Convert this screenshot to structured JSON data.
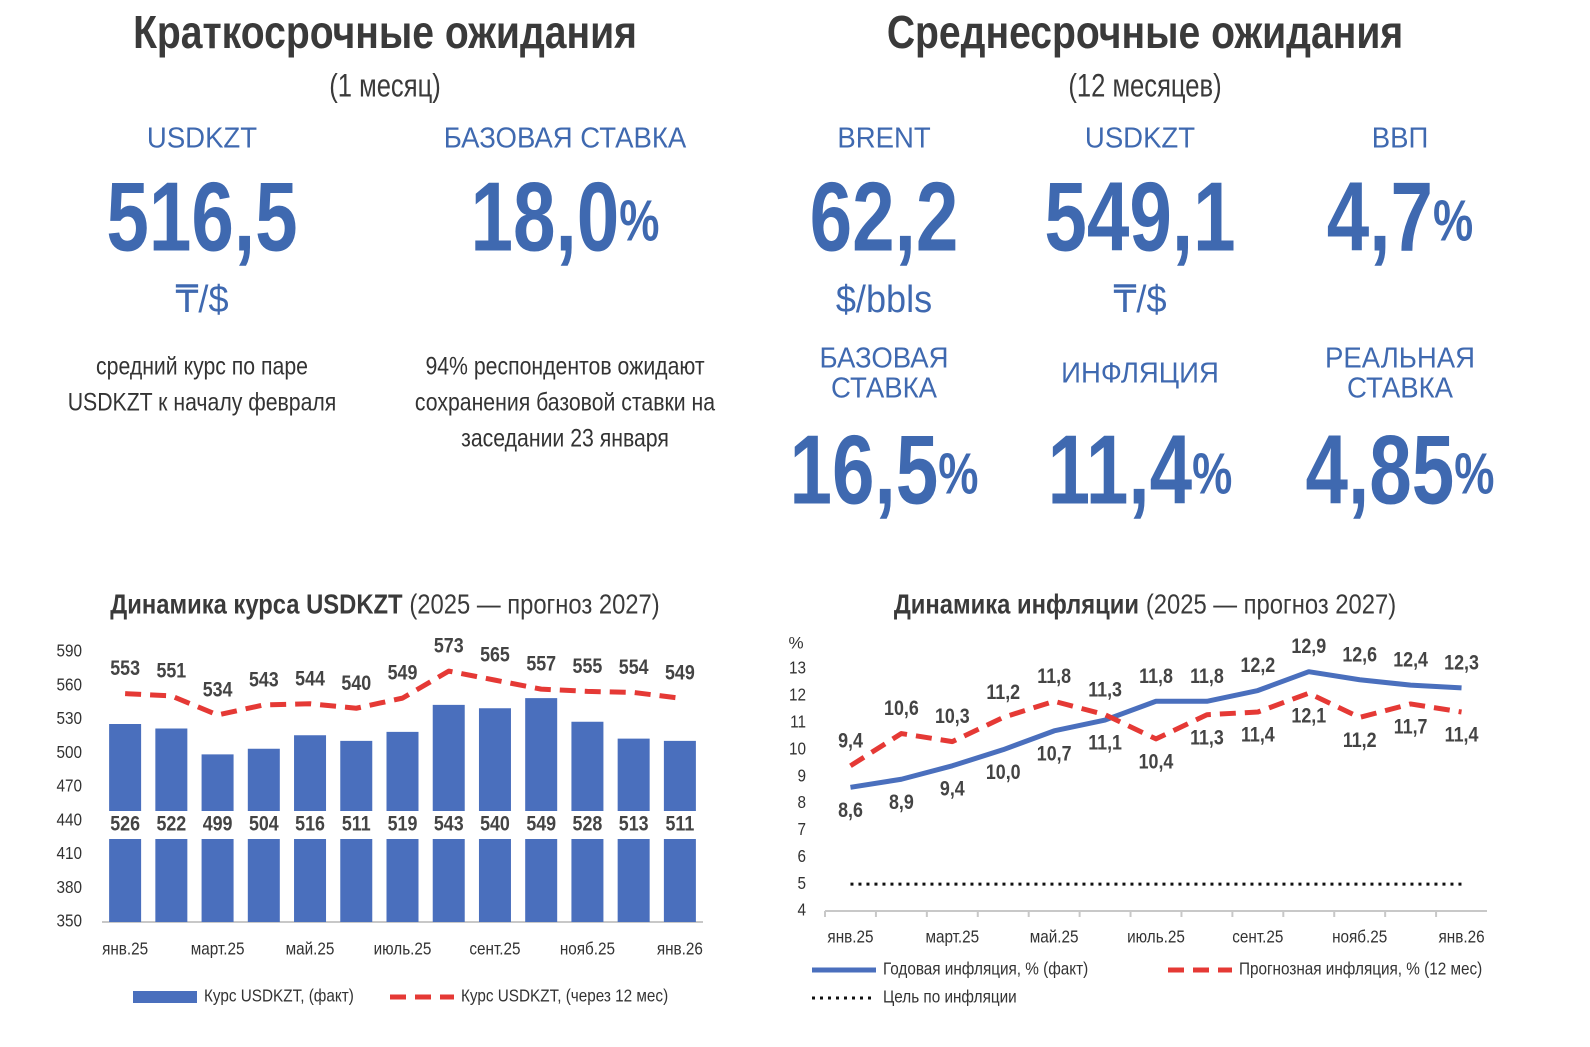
{
  "left": {
    "title": "Краткосрочные ожидания",
    "subtitle": "(1 месяц)",
    "kpis": [
      {
        "label": [
          "USDKZT"
        ],
        "value": "516,5",
        "unit": "₸/$",
        "note": [
          "средний курс по паре",
          "USDKZT к началу февраля"
        ]
      },
      {
        "label": [
          "БАЗОВАЯ СТАВКА"
        ],
        "value": "18,0",
        "suffix": "%",
        "note": [
          "94% респондентов ожидают",
          "сохранения базовой ставки на",
          "заседании 23 января"
        ]
      }
    ]
  },
  "right": {
    "title": "Среднесрочные ожидания",
    "subtitle": "(12 месяцев)",
    "kpis": [
      {
        "label": [
          "BRENT"
        ],
        "value": "62,2",
        "unit": "$/bbls"
      },
      {
        "label": [
          "USDKZT"
        ],
        "value": "549,1",
        "unit": "₸/$"
      },
      {
        "label": [
          "ВВП"
        ],
        "value": "4,7",
        "suffix": "%"
      },
      {
        "label": [
          "БАЗОВАЯ",
          "СТАВКА"
        ],
        "value": "16,5",
        "suffix": "%"
      },
      {
        "label": [
          "ИНФЛЯЦИЯ"
        ],
        "value": "11,4",
        "suffix": "%"
      },
      {
        "label": [
          "РЕАЛЬНАЯ",
          "СТАВКА"
        ],
        "value": "4,85",
        "suffix": "%"
      }
    ]
  },
  "chart_data": [
    {
      "type": "bar",
      "title": "Динамика курса USDKZT",
      "subtitle": "(2025 — прогноз 2027)",
      "categories": [
        "янв.25",
        null,
        "март.25",
        null,
        "май.25",
        null,
        "июль.25",
        null,
        "сент.25",
        null,
        "нояб.25",
        null,
        "янв.26"
      ],
      "series": [
        {
          "name": "Курс USDKZT, (факт)",
          "type": "bar",
          "color": "#4a6fbd",
          "values": [
            526,
            522,
            499,
            504,
            516,
            511,
            519,
            543,
            540,
            549,
            528,
            513,
            511
          ]
        },
        {
          "name": "Курс USDKZT, (через 12 мес)",
          "type": "line",
          "style": "dashed",
          "color": "#e53935",
          "values": [
            553,
            551,
            534,
            543,
            544,
            540,
            549,
            573,
            565,
            557,
            555,
            554,
            549
          ]
        }
      ],
      "ylim": [
        350,
        590
      ],
      "yticks": [
        350,
        380,
        410,
        440,
        470,
        500,
        530,
        560,
        590
      ]
    },
    {
      "type": "line",
      "title": "Динамика инфляции",
      "subtitle": "(2025 — прогноз 2027)",
      "y_label": "%",
      "categories": [
        "янв.25",
        null,
        "март.25",
        null,
        "май.25",
        null,
        "июль.25",
        null,
        "сент.25",
        null,
        "нояб.25",
        null,
        "янв.26"
      ],
      "series": [
        {
          "name": "Годовая инфляция, % (факт)",
          "type": "line",
          "style": "solid",
          "color": "#4a6fbd",
          "values": [
            8.6,
            8.9,
            9.4,
            10.0,
            10.7,
            11.1,
            11.8,
            11.8,
            12.2,
            12.9,
            12.6,
            12.4,
            12.3
          ],
          "value_labels": [
            "8,6",
            "8,9",
            "9,4",
            "10,0",
            "10,7",
            "11,1",
            "11,8",
            "11,8",
            "12,2",
            "12,9",
            "12,6",
            "12,4",
            "12,3"
          ]
        },
        {
          "name": "Прогнозная инфляция, % (12 мес)",
          "type": "line",
          "style": "dashed",
          "color": "#e53935",
          "values": [
            9.4,
            10.6,
            10.3,
            11.2,
            11.8,
            11.3,
            10.4,
            11.3,
            11.4,
            12.1,
            11.2,
            11.7,
            11.4
          ],
          "value_labels": [
            "9,4",
            "10,6",
            "10,3",
            "11,2",
            "11,8",
            "11,3",
            "10,4",
            "11,3",
            "11,4",
            "12,1",
            "11,2",
            "11,7",
            "11,4"
          ]
        },
        {
          "name": "Цель по инфляции",
          "type": "line",
          "style": "dotted",
          "color": "#111111",
          "values": [
            5,
            5,
            5,
            5,
            5,
            5,
            5,
            5,
            5,
            5,
            5,
            5,
            5
          ]
        }
      ],
      "ylim": [
        4,
        13
      ],
      "yticks": [
        4,
        5,
        6,
        7,
        8,
        9,
        10,
        11,
        12,
        13
      ]
    }
  ]
}
